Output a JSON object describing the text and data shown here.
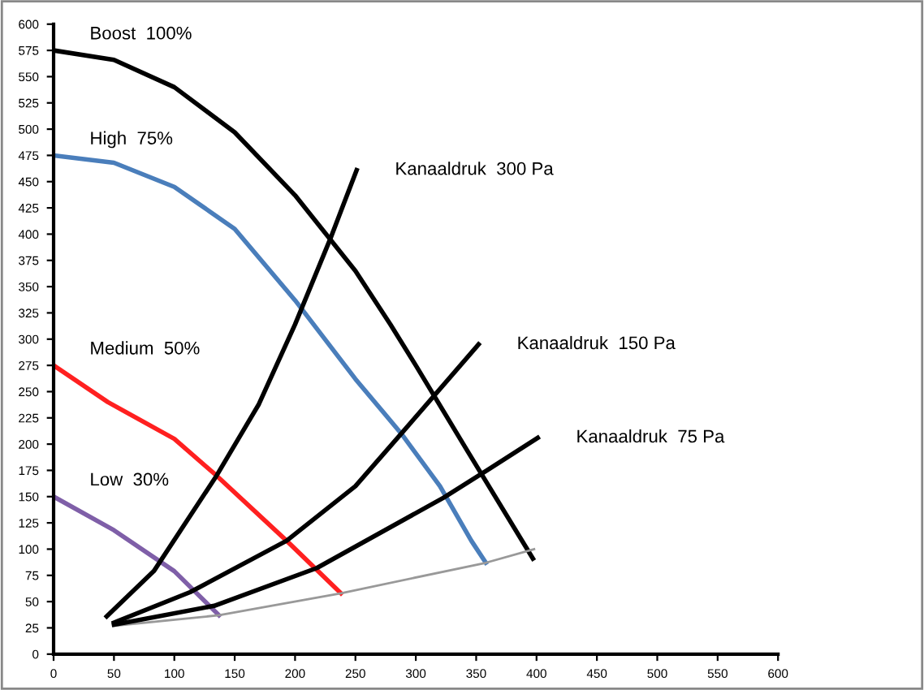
{
  "chart_data": {
    "type": "line",
    "series": [
      {
        "name": "Boost  100%",
        "color": "#000000",
        "x": [
          0,
          50,
          100,
          150,
          200,
          250,
          279,
          300,
          342,
          397
        ],
        "values": [
          575,
          566,
          540,
          497,
          437,
          365,
          314,
          275,
          195,
          91
        ]
      },
      {
        "name": "High  75%",
        "color": "#4a7ebb",
        "x": [
          0,
          50,
          100,
          150,
          200,
          250,
          288,
          320,
          346,
          358
        ],
        "values": [
          475,
          468,
          445,
          405,
          337,
          262,
          210,
          160,
          108,
          87
        ]
      },
      {
        "name": "Medium  50%",
        "color": "#ff2020",
        "x": [
          0,
          45,
          100,
          135,
          193,
          238
        ],
        "values": [
          275,
          240,
          205,
          170,
          108,
          58
        ]
      },
      {
        "name": "Low  30%",
        "color": "#7f5fa8",
        "x": [
          0,
          50,
          100,
          137
        ],
        "values": [
          150,
          118,
          79,
          37
        ]
      },
      {
        "color": "#999999",
        "x": [
          50,
          137,
          238,
          358,
          398
        ],
        "values": [
          27,
          37,
          58,
          87,
          100
        ]
      },
      {
        "name": "Kanaaldruk  300 Pa",
        "color": "#000000",
        "x": [
          44,
          83,
          135,
          170,
          200,
          229,
          251
        ],
        "values": [
          36,
          79,
          170,
          238,
          314,
          395,
          461
        ]
      },
      {
        "name": "Kanaaldruk  150 Pa",
        "color": "#000000",
        "x": [
          50,
          113,
          193,
          250,
          288,
          352
        ],
        "values": [
          30,
          59,
          108,
          160,
          210,
          295
        ]
      },
      {
        "name": "Kanaaldruk  75 Pa",
        "color": "#000000",
        "x": [
          50,
          133,
          218,
          323,
          359,
          401
        ],
        "values": [
          28,
          46,
          82,
          149,
          175,
          206
        ]
      }
    ],
    "xlim": [
      0,
      600
    ],
    "xticks": [
      0,
      50,
      100,
      150,
      200,
      250,
      300,
      350,
      400,
      450,
      500,
      550,
      600
    ],
    "ylim": [
      0,
      600
    ],
    "yticks": [
      0,
      25,
      50,
      75,
      100,
      125,
      150,
      175,
      200,
      225,
      250,
      275,
      300,
      325,
      350,
      375,
      400,
      425,
      450,
      475,
      500,
      525,
      550,
      575,
      600
    ],
    "grid": false,
    "marker": "none",
    "line_style": "solid"
  }
}
